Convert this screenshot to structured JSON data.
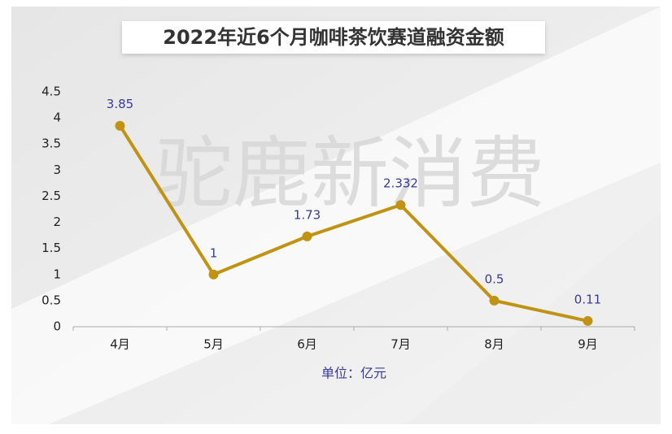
{
  "chart_data": {
    "type": "line",
    "title": "2022年近6个月咖啡茶饮赛道融资金额",
    "watermark": "驼鹿新消费",
    "x_label": "单位：亿元",
    "categories": [
      "4月",
      "5月",
      "6月",
      "7月",
      "8月",
      "9月"
    ],
    "values": [
      3.85,
      1,
      1.73,
      2.332,
      0.5,
      0.11
    ],
    "color": "#c09314",
    "label_color": "#3a3a96",
    "ylim": [
      0,
      4.5
    ],
    "yticks": [
      0,
      0.5,
      1,
      1.5,
      2,
      2.5,
      3,
      3.5,
      4,
      4.5
    ],
    "grid": false
  }
}
